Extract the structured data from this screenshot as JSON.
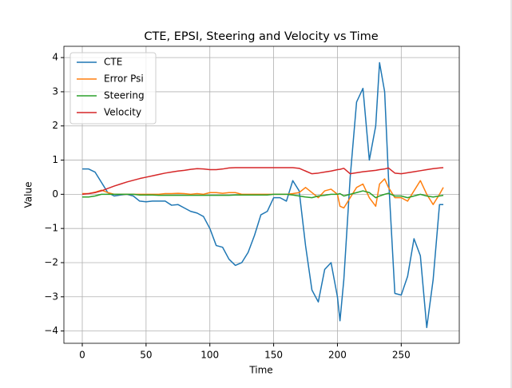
{
  "chart_data": {
    "type": "line",
    "title": "CTE, EPSI, Steering and Velocity vs Time",
    "x_label": "Time",
    "y_label": "Value",
    "x": [
      0,
      5,
      10,
      15,
      20,
      25,
      30,
      35,
      40,
      45,
      50,
      55,
      60,
      65,
      70,
      75,
      80,
      85,
      90,
      95,
      100,
      105,
      110,
      115,
      120,
      125,
      130,
      135,
      140,
      145,
      150,
      155,
      160,
      165,
      170,
      175,
      180,
      185,
      190,
      195,
      200,
      202,
      205,
      210,
      215,
      220,
      225,
      230,
      233,
      237,
      240,
      245,
      250,
      255,
      260,
      265,
      270,
      275,
      280,
      283
    ],
    "series": [
      {
        "name": "CTE",
        "color": "#1f77b4",
        "values": [
          0.74,
          0.74,
          0.65,
          0.35,
          0.05,
          -0.05,
          -0.02,
          0,
          -0.05,
          -0.2,
          -0.22,
          -0.2,
          -0.2,
          -0.2,
          -0.32,
          -0.3,
          -0.4,
          -0.5,
          -0.55,
          -0.65,
          -1.0,
          -1.5,
          -1.55,
          -1.9,
          -2.08,
          -2.0,
          -1.7,
          -1.2,
          -0.6,
          -0.5,
          -0.1,
          -0.1,
          -0.2,
          0.4,
          0.1,
          -1.5,
          -2.8,
          -3.15,
          -2.2,
          -2.0,
          -3.0,
          -3.7,
          -2.5,
          0.5,
          2.7,
          3.1,
          1.0,
          2.0,
          3.85,
          3.0,
          0.5,
          -2.9,
          -2.95,
          -2.4,
          -1.3,
          -1.8,
          -3.9,
          -2.5,
          -0.3,
          -0.3
        ]
      },
      {
        "name": "Error Psi",
        "color": "#ff7f0e",
        "values": [
          0.02,
          0.02,
          0.06,
          0.12,
          0.05,
          0,
          0,
          0,
          0,
          0,
          0,
          0,
          0,
          0.02,
          0.02,
          0.03,
          0.02,
          0,
          0.02,
          0,
          0.05,
          0.05,
          0.03,
          0.05,
          0.05,
          0,
          0,
          0,
          0,
          0,
          0,
          0,
          0,
          0.02,
          0.05,
          0.2,
          0.05,
          -0.1,
          0.1,
          0.15,
          0,
          -0.35,
          -0.4,
          -0.1,
          0.2,
          0.3,
          -0.1,
          -0.35,
          0.3,
          0.45,
          0.2,
          -0.1,
          -0.1,
          -0.2,
          0.1,
          0.4,
          0,
          -0.3,
          0,
          0.2
        ]
      },
      {
        "name": "Steering",
        "color": "#2ca02c",
        "values": [
          -0.08,
          -0.08,
          -0.05,
          0,
          0,
          0,
          0,
          0,
          0,
          -0.02,
          -0.02,
          -0.02,
          -0.03,
          -0.03,
          -0.03,
          -0.03,
          -0.03,
          -0.03,
          -0.03,
          -0.03,
          -0.03,
          -0.03,
          -0.03,
          -0.03,
          -0.02,
          -0.02,
          -0.02,
          -0.02,
          -0.02,
          -0.02,
          0,
          0,
          0,
          -0.02,
          -0.05,
          -0.08,
          -0.1,
          -0.05,
          -0.03,
          0,
          0,
          0.02,
          -0.05,
          0,
          0.05,
          0.1,
          0.05,
          -0.1,
          -0.05,
          0,
          0.03,
          -0.05,
          -0.05,
          -0.1,
          -0.05,
          0,
          -0.05,
          -0.08,
          -0.05,
          -0.03
        ]
      },
      {
        "name": "Velocity",
        "color": "#d62728",
        "values": [
          0,
          0.02,
          0.05,
          0.1,
          0.17,
          0.24,
          0.3,
          0.36,
          0.41,
          0.46,
          0.5,
          0.54,
          0.58,
          0.62,
          0.65,
          0.68,
          0.7,
          0.73,
          0.75,
          0.74,
          0.72,
          0.72,
          0.74,
          0.77,
          0.78,
          0.78,
          0.78,
          0.78,
          0.78,
          0.78,
          0.78,
          0.78,
          0.78,
          0.78,
          0.76,
          0.68,
          0.6,
          0.62,
          0.65,
          0.68,
          0.72,
          0.73,
          0.76,
          0.6,
          0.63,
          0.66,
          0.68,
          0.7,
          0.72,
          0.74,
          0.77,
          0.62,
          0.6,
          0.63,
          0.66,
          0.69,
          0.72,
          0.75,
          0.77,
          0.78
        ]
      }
    ],
    "xlim": [
      -14.4,
      295.5
    ],
    "ylim": [
      -4.36,
      4.33
    ],
    "xticks": [
      0,
      50,
      100,
      150,
      200,
      250
    ],
    "yticks": [
      {
        "value": -4,
        "label": "−4"
      },
      {
        "value": -3,
        "label": "−3"
      },
      {
        "value": -2,
        "label": "−2"
      },
      {
        "value": -1,
        "label": "−1"
      },
      0,
      1,
      2,
      3,
      4
    ],
    "grid": true,
    "legend": "upper left"
  }
}
